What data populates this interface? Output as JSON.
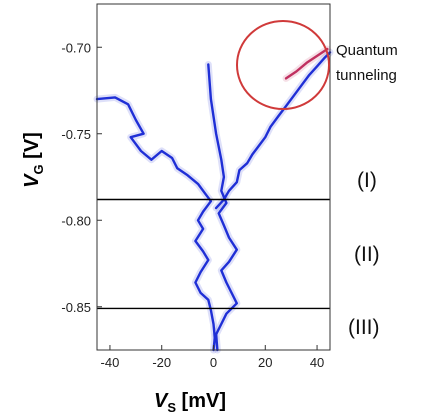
{
  "chart_data": {
    "type": "line",
    "xlabel": {
      "symbol": "V",
      "subscript": "S",
      "unit": " [mV]"
    },
    "ylabel": {
      "symbol": "V",
      "subscript": "G",
      "unit": " [V]"
    },
    "xlim": [
      -45,
      45
    ],
    "ylim": [
      -0.875,
      -0.675
    ],
    "x_ticks": [
      {
        "value": -40,
        "label": "-40"
      },
      {
        "value": -20,
        "label": "-20"
      },
      {
        "value": 0,
        "label": "0"
      },
      {
        "value": 20,
        "label": "20"
      },
      {
        "value": 40,
        "label": "40"
      }
    ],
    "y_ticks": [
      {
        "value": -0.7,
        "label": "-0.70"
      },
      {
        "value": -0.75,
        "label": "-0.75"
      },
      {
        "value": -0.8,
        "label": "-0.80"
      },
      {
        "value": -0.85,
        "label": "-0.85"
      }
    ],
    "grid": false,
    "series": [
      {
        "color": "#1f2fd6",
        "points": [
          [
            -45,
            -0.73
          ],
          [
            -38,
            -0.729
          ],
          [
            -33,
            -0.733
          ],
          [
            -30,
            -0.742
          ],
          [
            -27,
            -0.75
          ],
          [
            -32,
            -0.752
          ],
          [
            -28,
            -0.76
          ],
          [
            -24,
            -0.765
          ],
          [
            -20,
            -0.76
          ],
          [
            -16,
            -0.764
          ],
          [
            -14,
            -0.77
          ],
          [
            -10,
            -0.774
          ],
          [
            -6,
            -0.779
          ],
          [
            -3,
            -0.785
          ],
          [
            -1,
            -0.789
          ],
          [
            -4,
            -0.795
          ],
          [
            -6,
            -0.8
          ],
          [
            -4,
            -0.805
          ],
          [
            -7,
            -0.812
          ],
          [
            -4,
            -0.818
          ],
          [
            -2,
            -0.823
          ],
          [
            -5,
            -0.83
          ],
          [
            -7,
            -0.836
          ],
          [
            -5,
            -0.842
          ],
          [
            -2,
            -0.846
          ],
          [
            -1,
            -0.852
          ],
          [
            0,
            -0.86
          ],
          [
            0.5,
            -0.868
          ],
          [
            0,
            -0.875
          ]
        ]
      },
      {
        "color": "#1f2fd6",
        "points": [
          [
            -2,
            -0.71
          ],
          [
            -1,
            -0.73
          ],
          [
            1,
            -0.75
          ],
          [
            3,
            -0.765
          ],
          [
            4,
            -0.775
          ],
          [
            3,
            -0.783
          ],
          [
            5,
            -0.79
          ],
          [
            2,
            -0.796
          ],
          [
            4,
            -0.803
          ],
          [
            6,
            -0.81
          ],
          [
            9,
            -0.817
          ],
          [
            6,
            -0.824
          ],
          [
            3,
            -0.829
          ],
          [
            5,
            -0.836
          ],
          [
            7,
            -0.842
          ],
          [
            9,
            -0.848
          ],
          [
            5,
            -0.854
          ],
          [
            3,
            -0.86
          ],
          [
            1,
            -0.866
          ],
          [
            1.5,
            -0.875
          ]
        ]
      },
      {
        "color": "#1f2fd6",
        "points": [
          [
            1,
            -0.793
          ],
          [
            4,
            -0.788
          ],
          [
            6,
            -0.783
          ],
          [
            9,
            -0.778
          ],
          [
            10,
            -0.771
          ],
          [
            13,
            -0.767
          ],
          [
            15,
            -0.762
          ],
          [
            17,
            -0.758
          ],
          [
            20,
            -0.752
          ],
          [
            22,
            -0.746
          ],
          [
            25,
            -0.74
          ],
          [
            28,
            -0.734
          ],
          [
            31,
            -0.728
          ],
          [
            34,
            -0.722
          ],
          [
            37,
            -0.716
          ],
          [
            40,
            -0.711
          ],
          [
            43,
            -0.706
          ],
          [
            45,
            -0.703
          ]
        ]
      },
      {
        "color": "#c03060",
        "points": [
          [
            28,
            -0.718
          ],
          [
            32,
            -0.714
          ],
          [
            36,
            -0.709
          ],
          [
            40,
            -0.705
          ],
          [
            44,
            -0.701
          ]
        ]
      }
    ],
    "hlines": [
      -0.788,
      -0.851
    ],
    "annotations": {
      "circle_label_line1": "Quantum",
      "circle_label_line2": "tunneling",
      "region_1": "(I)",
      "region_2": "(II)",
      "region_3": "(III)"
    }
  }
}
